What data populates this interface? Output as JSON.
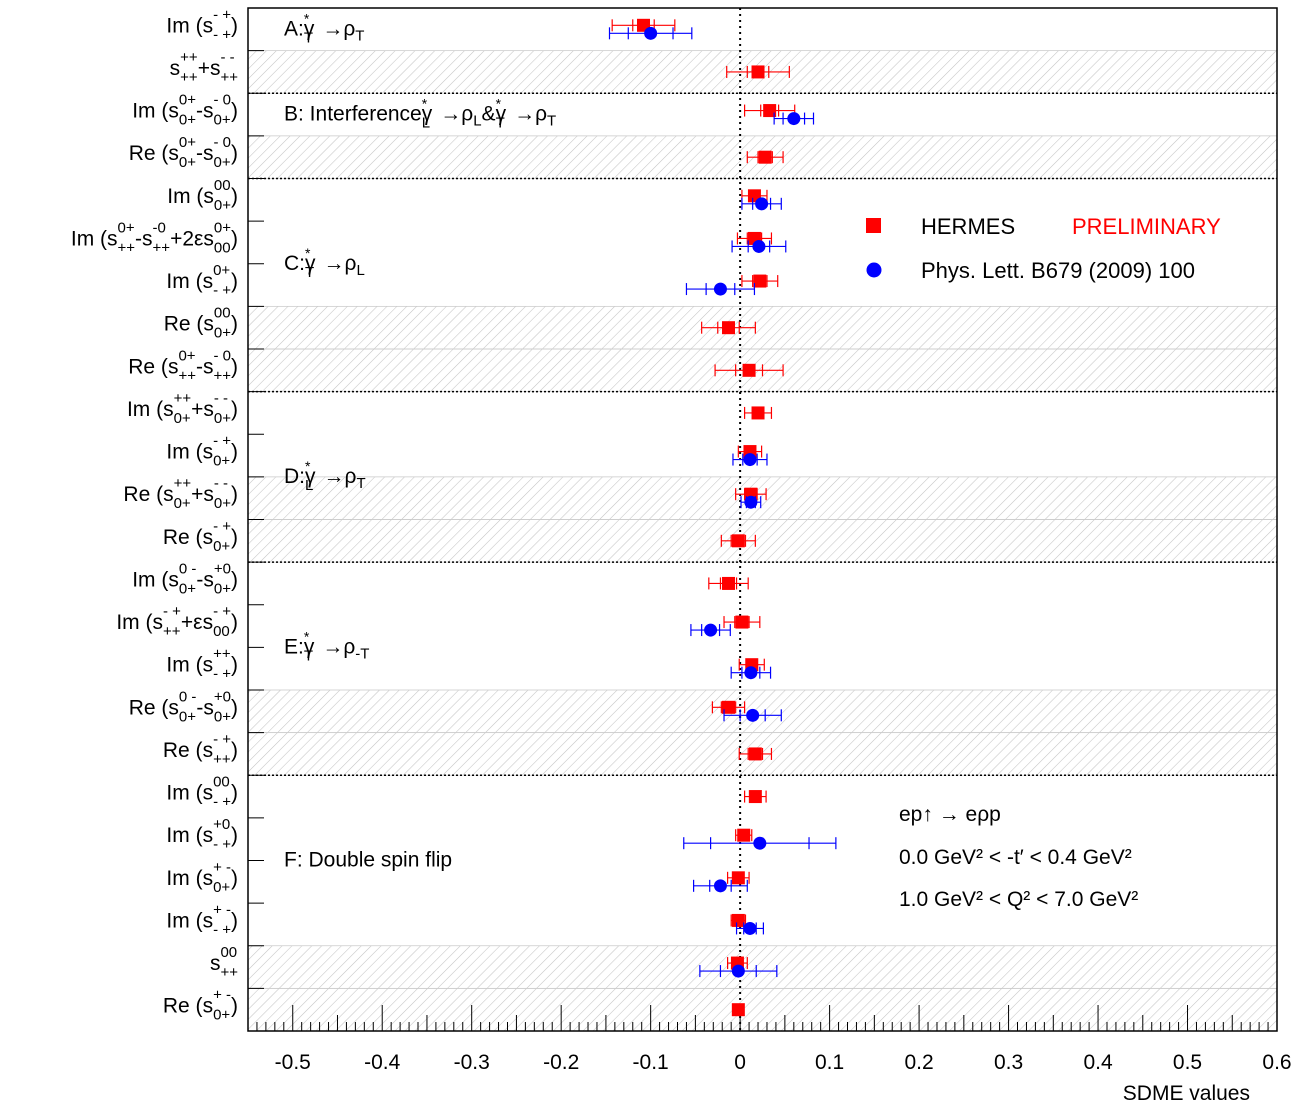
{
  "chart_data": {
    "type": "scatter",
    "xlabel": "SDME values",
    "xlim": [
      -0.55,
      0.6
    ],
    "xticks": [
      "-0.5",
      "-0.4",
      "-0.3",
      "-0.2",
      "-0.1",
      "0",
      "0.1",
      "0.2",
      "0.3",
      "0.4",
      "0.5",
      "0.6"
    ],
    "tick_values": [
      -0.5,
      -0.4,
      -0.3,
      -0.2,
      -0.1,
      0,
      0.1,
      0.2,
      0.3,
      0.4,
      0.5,
      0.6
    ],
    "colors": {
      "hermes": "#ff0000",
      "plb": "#0000ff",
      "hatch": "#bbbbbb"
    },
    "legend": {
      "hermes_name": "HERMES",
      "hermes_tag": "PRELIMINARY",
      "plb_name": "Phys. Lett. B679 (2009) 100"
    },
    "kinematics": [
      "ep↑ → eρp",
      "0.0 GeV² < -t′ < 0.4 GeV²",
      "1.0 GeV² < Q² < 7.0 GeV²"
    ],
    "groups": [
      {
        "label": "A:  γ*T → ρ T",
        "rows": [
          0,
          1
        ]
      },
      {
        "label": "B: Interference γ*L → ρ L & γ*T → ρ T",
        "rows": [
          2,
          3
        ]
      },
      {
        "label": "C: γ*T → ρ L",
        "rows": [
          4,
          8
        ]
      },
      {
        "label": "D: γ*L → ρ T",
        "rows": [
          9,
          12
        ]
      },
      {
        "label": "E: γ*T → ρ -T",
        "rows": [
          13,
          17
        ]
      },
      {
        "label": "F: Double spin flip",
        "rows": [
          18,
          23
        ]
      }
    ],
    "hatched_rows": [
      1,
      3,
      7,
      8,
      11,
      12,
      16,
      17,
      22,
      23
    ],
    "series": [
      {
        "name": "HERMES PRELIMINARY",
        "points": [
          {
            "row": 0,
            "x": -0.108,
            "stat": 0.012,
            "tot": 0.035
          },
          {
            "row": 1,
            "x": 0.02,
            "stat": 0.012,
            "tot": 0.035
          },
          {
            "row": 2,
            "x": 0.033,
            "stat": 0.01,
            "tot": 0.028
          },
          {
            "row": 3,
            "x": 0.028,
            "stat": 0.008,
            "tot": 0.02
          },
          {
            "row": 4,
            "x": 0.016,
            "stat": 0.006,
            "tot": 0.014
          },
          {
            "row": 5,
            "x": 0.016,
            "stat": 0.008,
            "tot": 0.019
          },
          {
            "row": 6,
            "x": 0.022,
            "stat": 0.008,
            "tot": 0.02
          },
          {
            "row": 7,
            "x": -0.013,
            "stat": 0.012,
            "tot": 0.03
          },
          {
            "row": 8,
            "x": 0.01,
            "stat": 0.015,
            "tot": 0.038
          },
          {
            "row": 9,
            "x": 0.02,
            "stat": 0.006,
            "tot": 0.015
          },
          {
            "row": 10,
            "x": 0.011,
            "stat": 0.006,
            "tot": 0.013
          },
          {
            "row": 11,
            "x": 0.012,
            "stat": 0.007,
            "tot": 0.017
          },
          {
            "row": 12,
            "x": -0.002,
            "stat": 0.008,
            "tot": 0.019
          },
          {
            "row": 13,
            "x": -0.013,
            "stat": 0.009,
            "tot": 0.022
          },
          {
            "row": 14,
            "x": 0.002,
            "stat": 0.008,
            "tot": 0.02
          },
          {
            "row": 15,
            "x": 0.013,
            "stat": 0.006,
            "tot": 0.014
          },
          {
            "row": 16,
            "x": -0.013,
            "stat": 0.008,
            "tot": 0.018
          },
          {
            "row": 17,
            "x": 0.017,
            "stat": 0.008,
            "tot": 0.018
          },
          {
            "row": 18,
            "x": 0.017,
            "stat": 0.006,
            "tot": 0.012
          },
          {
            "row": 19,
            "x": 0.004,
            "stat": 0.004,
            "tot": 0.009
          },
          {
            "row": 20,
            "x": -0.002,
            "stat": 0.005,
            "tot": 0.012
          },
          {
            "row": 21,
            "x": -0.002,
            "stat": 0.004,
            "tot": 0.008
          },
          {
            "row": 22,
            "x": -0.003,
            "stat": 0.005,
            "tot": 0.011
          },
          {
            "row": 23,
            "x": -0.002,
            "stat": 0.003,
            "tot": 0.006
          }
        ]
      },
      {
        "name": "Phys. Lett. B679 (2009) 100",
        "points": [
          {
            "row": 0,
            "x": -0.1,
            "stat": 0.025,
            "tot": 0.046
          },
          {
            "row": 2,
            "x": 0.06,
            "stat": 0.012,
            "tot": 0.022
          },
          {
            "row": 4,
            "x": 0.024,
            "stat": 0.01,
            "tot": 0.022
          },
          {
            "row": 5,
            "x": 0.021,
            "stat": 0.012,
            "tot": 0.03
          },
          {
            "row": 6,
            "x": -0.022,
            "stat": 0.016,
            "tot": 0.038
          },
          {
            "row": 10,
            "x": 0.011,
            "stat": 0.008,
            "tot": 0.019
          },
          {
            "row": 11,
            "x": 0.012,
            "stat": 0.005,
            "tot": 0.011
          },
          {
            "row": 14,
            "x": -0.033,
            "stat": 0.01,
            "tot": 0.022
          },
          {
            "row": 15,
            "x": 0.012,
            "stat": 0.01,
            "tot": 0.022
          },
          {
            "row": 16,
            "x": 0.014,
            "stat": 0.014,
            "tot": 0.032
          },
          {
            "row": 19,
            "x": 0.022,
            "stat": 0.055,
            "tot": 0.085
          },
          {
            "row": 20,
            "x": -0.022,
            "stat": 0.012,
            "tot": 0.03
          },
          {
            "row": 21,
            "x": 0.011,
            "stat": 0.007,
            "tot": 0.015
          },
          {
            "row": 22,
            "x": -0.002,
            "stat": 0.02,
            "tot": 0.043
          }
        ]
      }
    ],
    "row_labels": [
      {
        "pre": "Im (",
        "terms": [
          {
            "sup": "- +",
            "sub": "- +"
          }
        ],
        "post": " )"
      },
      {
        "pre": "",
        "terms": [
          {
            "sup": "++",
            "sub": "++"
          },
          {
            "op": " + "
          },
          {
            "sup": "- -",
            "sub": "++"
          }
        ],
        "post": ""
      },
      {
        "pre": "Im (",
        "terms": [
          {
            "sup": "0+",
            "sub": "0+"
          },
          {
            "op": "- "
          },
          {
            "sup": "- 0",
            "sub": "0+"
          }
        ],
        "post": " )"
      },
      {
        "pre": "Re (",
        "terms": [
          {
            "sup": "0+",
            "sub": "0+"
          },
          {
            "op": "- "
          },
          {
            "sup": "- 0",
            "sub": "0+"
          }
        ],
        "post": " )"
      },
      {
        "pre": "Im (",
        "terms": [
          {
            "sup": "00",
            "sub": "0+"
          }
        ],
        "post": " )"
      },
      {
        "pre": "Im (",
        "terms": [
          {
            "sup": "0+",
            "sub": "++"
          },
          {
            "op": "-"
          },
          {
            "sup": "-0",
            "sub": "++"
          },
          {
            "op": "+2ε"
          },
          {
            "sup": "0+",
            "sub": "00"
          }
        ],
        "post": ")"
      },
      {
        "pre": "Im (",
        "terms": [
          {
            "sup": "0+",
            "sub": "- +"
          }
        ],
        "post": " )"
      },
      {
        "pre": "Re (",
        "terms": [
          {
            "sup": "00",
            "sub": "0+"
          }
        ],
        "post": " )"
      },
      {
        "pre": "Re (",
        "terms": [
          {
            "sup": "0+",
            "sub": "++"
          },
          {
            "op": "- "
          },
          {
            "sup": "- 0",
            "sub": "++"
          }
        ],
        "post": " )"
      },
      {
        "pre": "Im (",
        "terms": [
          {
            "sup": "++",
            "sub": "0+"
          },
          {
            "op": "+"
          },
          {
            "sup": "- -",
            "sub": "0+"
          }
        ],
        "post": " )"
      },
      {
        "pre": "Im (",
        "terms": [
          {
            "sup": "- +",
            "sub": "0+"
          }
        ],
        "post": " )"
      },
      {
        "pre": "Re (",
        "terms": [
          {
            "sup": "++",
            "sub": "0+"
          },
          {
            "op": "+"
          },
          {
            "sup": "- -",
            "sub": "0+"
          }
        ],
        "post": " )"
      },
      {
        "pre": "Re (",
        "terms": [
          {
            "sup": "- +",
            "sub": "0+"
          }
        ],
        "post": " )"
      },
      {
        "pre": "Im (",
        "terms": [
          {
            "sup": "0 -",
            "sub": "0+"
          },
          {
            "op": "- "
          },
          {
            "sup": "+0",
            "sub": "0+"
          }
        ],
        "post": " )"
      },
      {
        "pre": "Im (",
        "terms": [
          {
            "sup": "- +",
            "sub": "++"
          },
          {
            "op": "+ε"
          },
          {
            "sup": "- +",
            "sub": "00"
          }
        ],
        "post": ")"
      },
      {
        "pre": "Im (",
        "terms": [
          {
            "sup": "++",
            "sub": "- +"
          }
        ],
        "post": " )"
      },
      {
        "pre": "Re (",
        "terms": [
          {
            "sup": "0 -",
            "sub": "0+"
          },
          {
            "op": "- "
          },
          {
            "sup": "+0",
            "sub": "0+"
          }
        ],
        "post": " )"
      },
      {
        "pre": "Re (",
        "terms": [
          {
            "sup": "- +",
            "sub": "++"
          }
        ],
        "post": " )"
      },
      {
        "pre": "Im (",
        "terms": [
          {
            "sup": "00",
            "sub": "- +"
          }
        ],
        "post": " )"
      },
      {
        "pre": "Im (",
        "terms": [
          {
            "sup": "+0",
            "sub": "- +"
          }
        ],
        "post": " )"
      },
      {
        "pre": "Im (",
        "terms": [
          {
            "sup": "+ -",
            "sub": "0+"
          }
        ],
        "post": " )"
      },
      {
        "pre": "Im (",
        "terms": [
          {
            "sup": "+ -",
            "sub": "- +"
          }
        ],
        "post": " )"
      },
      {
        "pre": "",
        "terms": [
          {
            "sup": "00",
            "sub": "++"
          }
        ],
        "post": ""
      },
      {
        "pre": "Re (",
        "terms": [
          {
            "sup": "+ -",
            "sub": "0+"
          }
        ],
        "post": " )"
      }
    ]
  }
}
